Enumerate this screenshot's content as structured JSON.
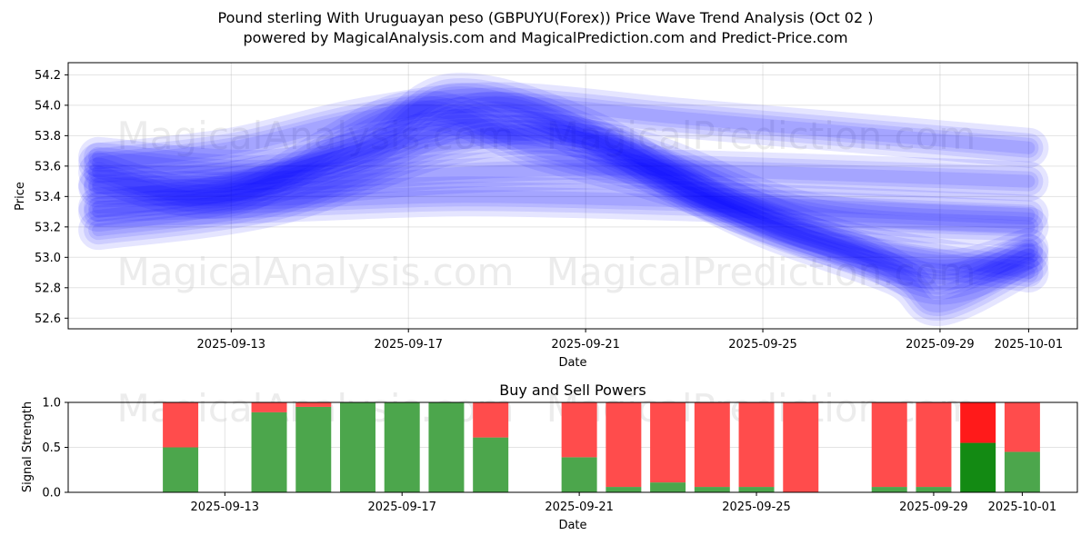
{
  "title_line1": "Pound sterling With Uruguayan peso (GBPUYU(Forex)) Price Wave Trend Analysis (Oct 02 )",
  "title_line2": "powered by MagicalAnalysis.com and MagicalPrediction.com and Predict-Price.com",
  "watermarks": [
    "MagicalAnalysis.com",
    "MagicalPrediction.com"
  ],
  "colors": {
    "wave": "#0000ff",
    "buy": "#4ca64c",
    "sell": "#ff4c4c",
    "buy_highlight": "#138a13",
    "sell_highlight": "#ff1a1a"
  },
  "chart_data": [
    {
      "type": "line",
      "title": "",
      "xlabel": "Date",
      "ylabel": "Price",
      "xlim": [
        "2025-09-10",
        "2025-10-02"
      ],
      "ylim": [
        52.53,
        54.28
      ],
      "grid": true,
      "x_ticks": [
        "2025-09-13",
        "2025-09-17",
        "2025-09-21",
        "2025-09-25",
        "2025-09-29",
        "2025-10-01"
      ],
      "y_ticks": [
        52.6,
        52.8,
        53.0,
        53.2,
        53.4,
        53.6,
        53.8,
        54.0,
        54.2
      ],
      "series": [
        {
          "x": [
            "2025-09-10",
            "2025-09-13",
            "2025-09-16",
            "2025-09-19",
            "2025-09-23",
            "2025-09-27",
            "2025-10-01"
          ],
          "values": [
            53.62,
            53.72,
            53.92,
            54.02,
            53.92,
            53.82,
            53.72
          ]
        },
        {
          "x": [
            "2025-09-10",
            "2025-09-14",
            "2025-09-18",
            "2025-09-22",
            "2025-09-26",
            "2025-10-01"
          ],
          "values": [
            53.48,
            53.47,
            53.55,
            53.58,
            53.55,
            53.5
          ]
        },
        {
          "x": [
            "2025-09-10",
            "2025-09-14",
            "2025-09-18",
            "2025-09-22",
            "2025-09-26",
            "2025-10-01"
          ],
          "values": [
            53.33,
            53.36,
            53.4,
            53.38,
            53.34,
            53.28
          ]
        },
        {
          "x": [
            "2025-09-10",
            "2025-09-13",
            "2025-09-16",
            "2025-09-18",
            "2025-09-21",
            "2025-09-24",
            "2025-09-27",
            "2025-09-29",
            "2025-10-01"
          ],
          "values": [
            53.46,
            53.5,
            53.72,
            54.08,
            53.85,
            53.35,
            53.05,
            52.82,
            53.02
          ]
        },
        {
          "x": [
            "2025-09-10",
            "2025-09-13",
            "2025-09-16",
            "2025-09-19",
            "2025-09-22",
            "2025-09-25",
            "2025-09-28",
            "2025-09-29",
            "2025-10-01"
          ],
          "values": [
            53.3,
            53.42,
            53.66,
            53.96,
            53.62,
            53.2,
            52.88,
            52.68,
            52.96
          ]
        },
        {
          "x": [
            "2025-09-10",
            "2025-09-13",
            "2025-09-17",
            "2025-09-20",
            "2025-09-23",
            "2025-09-26",
            "2025-09-29",
            "2025-10-01"
          ],
          "values": [
            53.56,
            53.4,
            53.96,
            53.7,
            53.46,
            53.12,
            52.92,
            53.06
          ]
        },
        {
          "x": [
            "2025-09-10",
            "2025-09-14",
            "2025-09-18",
            "2025-09-21",
            "2025-09-24",
            "2025-09-27",
            "2025-10-01"
          ],
          "values": [
            53.18,
            53.34,
            53.74,
            53.78,
            53.4,
            53.1,
            52.9
          ]
        },
        {
          "x": [
            "2025-09-10",
            "2025-09-14",
            "2025-09-18",
            "2025-09-22",
            "2025-09-26",
            "2025-10-01"
          ],
          "values": [
            53.66,
            53.58,
            53.84,
            53.72,
            53.3,
            53.2
          ]
        }
      ]
    },
    {
      "type": "bar",
      "title": "Buy and Sell Powers",
      "xlabel": "Date",
      "ylabel": "Signal Strength",
      "xlim": [
        "2025-09-10",
        "2025-10-02"
      ],
      "ylim": [
        0,
        1.0
      ],
      "y_ticks": [
        0.0,
        0.5,
        1.0
      ],
      "x_ticks": [
        "2025-09-13",
        "2025-09-17",
        "2025-09-21",
        "2025-09-25",
        "2025-09-29",
        "2025-10-01"
      ],
      "grid": true,
      "stacked": true,
      "bars": [
        {
          "date": "2025-09-12",
          "buy": 0.5,
          "sell": 0.5
        },
        {
          "date": "2025-09-14",
          "buy": 0.89,
          "sell": 0.11
        },
        {
          "date": "2025-09-15",
          "buy": 0.95,
          "sell": 0.05
        },
        {
          "date": "2025-09-16",
          "buy": 1.0,
          "sell": 0.0
        },
        {
          "date": "2025-09-17",
          "buy": 1.0,
          "sell": 0.0
        },
        {
          "date": "2025-09-18",
          "buy": 1.0,
          "sell": 0.0
        },
        {
          "date": "2025-09-19",
          "buy": 0.61,
          "sell": 0.39
        },
        {
          "date": "2025-09-21",
          "buy": 0.39,
          "sell": 0.61
        },
        {
          "date": "2025-09-22",
          "buy": 0.06,
          "sell": 0.94
        },
        {
          "date": "2025-09-23",
          "buy": 0.11,
          "sell": 0.89
        },
        {
          "date": "2025-09-24",
          "buy": 0.06,
          "sell": 0.94
        },
        {
          "date": "2025-09-25",
          "buy": 0.06,
          "sell": 0.94
        },
        {
          "date": "2025-09-26",
          "buy": 0.0,
          "sell": 1.0
        },
        {
          "date": "2025-09-28",
          "buy": 0.06,
          "sell": 0.94
        },
        {
          "date": "2025-09-29",
          "buy": 0.06,
          "sell": 0.94
        },
        {
          "date": "2025-09-30",
          "buy": 0.55,
          "sell": 0.45,
          "highlight": true
        },
        {
          "date": "2025-10-01",
          "buy": 0.45,
          "sell": 0.55
        }
      ]
    }
  ]
}
